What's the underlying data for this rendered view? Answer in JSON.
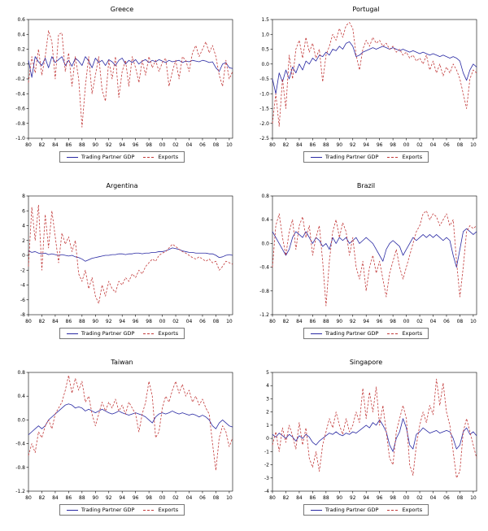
{
  "legend": {
    "gdp_label": "Trading Partner GDP",
    "exports_label": "Exports",
    "gdp_color": "#2929a3",
    "exports_color": "#c23a3a"
  },
  "x_axis": {
    "tick_labels": [
      "80",
      "82",
      "84",
      "86",
      "88",
      "90",
      "92",
      "94",
      "96",
      "98",
      "00",
      "02",
      "04",
      "06",
      "08",
      "10"
    ],
    "start": 1980,
    "end": 2010.5,
    "tick_step_years": 2
  },
  "chart_data": [
    {
      "type": "line",
      "title": "Greece",
      "ylim": [
        -1.0,
        0.6
      ],
      "yticks": [
        "0.6",
        "0.4",
        "0.2",
        "0.0",
        "-0.2",
        "-0.4",
        "-0.6",
        "-0.8",
        "-1.0"
      ],
      "series": [
        {
          "name": "Trading Partner GDP",
          "style": "solid",
          "color": "#2929a3",
          "values": [
            0.05,
            -0.18,
            0.1,
            0.03,
            -0.02,
            0.08,
            -0.05,
            0.1,
            0.02,
            0.06,
            0.1,
            -0.02,
            0.05,
            -0.03,
            0.08,
            0.04,
            -0.02,
            0.1,
            0.04,
            -0.05,
            0.08,
            0.02,
            0.05,
            -0.02,
            0.06,
            0.03,
            -0.02,
            0.05,
            0.08,
            0.0,
            0.05,
            0.02,
            0.06,
            0.0,
            0.04,
            0.06,
            0.02,
            0.05,
            0.03,
            0.06,
            0.04,
            0.02,
            0.05,
            0.03,
            0.04,
            0.05,
            0.02,
            0.04,
            0.03,
            0.05,
            0.04,
            0.03,
            0.05,
            0.04,
            0.02,
            0.03,
            -0.05,
            -0.1,
            0.0,
            0.02,
            -0.05,
            -0.06
          ]
        },
        {
          "name": "Exports",
          "style": "dashed",
          "color": "#c23a3a",
          "values": [
            -0.25,
            0.1,
            -0.12,
            0.2,
            -0.15,
            0.1,
            0.45,
            0.3,
            -0.2,
            0.4,
            0.42,
            -0.1,
            0.15,
            -0.3,
            0.1,
            -0.2,
            -0.85,
            -0.3,
            0.1,
            -0.4,
            -0.15,
            0.1,
            -0.35,
            -0.5,
            0.05,
            -0.2,
            0.1,
            -0.45,
            -0.1,
            0.05,
            -0.3,
            0.1,
            -0.05,
            -0.25,
            0.05,
            -0.15,
            0.1,
            -0.05,
            0.05,
            -0.1,
            0.02,
            0.08,
            -0.3,
            -0.1,
            0.05,
            -0.2,
            0.1,
            0.05,
            -0.1,
            0.15,
            0.25,
            0.1,
            0.2,
            0.3,
            0.15,
            0.25,
            0.1,
            -0.15,
            -0.3,
            0.05,
            -0.2,
            -0.1
          ]
        }
      ]
    },
    {
      "type": "line",
      "title": "Portugal",
      "ylim": [
        -2.5,
        1.5
      ],
      "yticks": [
        "1.5",
        "1.0",
        "0.5",
        "0.0",
        "-0.5",
        "-1.0",
        "-1.5",
        "-2.0",
        "-2.5"
      ],
      "series": [
        {
          "name": "Trading Partner GDP",
          "style": "solid",
          "color": "#2929a3",
          "values": [
            -0.5,
            -1.0,
            -0.3,
            -0.6,
            -0.2,
            -0.5,
            -0.1,
            -0.3,
            0.0,
            -0.2,
            0.1,
            0.0,
            0.2,
            0.1,
            0.3,
            0.25,
            0.4,
            0.3,
            0.5,
            0.45,
            0.6,
            0.5,
            0.7,
            0.75,
            0.6,
            0.25,
            0.3,
            0.4,
            0.45,
            0.5,
            0.55,
            0.5,
            0.55,
            0.6,
            0.55,
            0.5,
            0.55,
            0.5,
            0.45,
            0.5,
            0.45,
            0.4,
            0.45,
            0.4,
            0.35,
            0.4,
            0.35,
            0.3,
            0.35,
            0.3,
            0.25,
            0.3,
            0.25,
            0.2,
            0.25,
            0.2,
            0.1,
            -0.3,
            -0.55,
            -0.2,
            0.0,
            -0.1
          ]
        },
        {
          "name": "Exports",
          "style": "dashed",
          "color": "#c23a3a",
          "values": [
            -2.0,
            -1.0,
            -2.1,
            -0.5,
            -1.5,
            0.3,
            -0.5,
            0.5,
            0.8,
            0.2,
            0.9,
            0.4,
            0.7,
            0.2,
            0.5,
            -0.6,
            0.3,
            0.6,
            1.0,
            0.8,
            1.2,
            0.9,
            1.3,
            1.4,
            1.2,
            0.3,
            -0.2,
            0.5,
            0.8,
            0.6,
            0.9,
            0.7,
            0.8,
            0.6,
            0.7,
            0.5,
            0.6,
            0.4,
            0.5,
            0.3,
            0.4,
            0.2,
            0.3,
            0.1,
            0.2,
            0.0,
            0.3,
            -0.2,
            0.1,
            -0.3,
            0.0,
            -0.4,
            -0.1,
            -0.3,
            0.0,
            -0.2,
            -0.5,
            -1.0,
            -1.5,
            -0.5,
            -0.2,
            -0.3
          ]
        }
      ]
    },
    {
      "type": "line",
      "title": "Argentina",
      "ylim": [
        -8,
        8
      ],
      "yticks": [
        "8",
        "6",
        "4",
        "2",
        "0",
        "-2",
        "-4",
        "-6",
        "-8"
      ],
      "series": [
        {
          "name": "Trading Partner GDP",
          "style": "solid",
          "color": "#2929a3",
          "values": [
            0.6,
            0.4,
            0.5,
            0.3,
            0.2,
            0.3,
            0.1,
            0.2,
            0.1,
            0.0,
            0.1,
            0.0,
            -0.1,
            0.0,
            -0.2,
            -0.3,
            -0.5,
            -0.8,
            -0.6,
            -0.4,
            -0.3,
            -0.2,
            -0.1,
            0.0,
            0.0,
            0.1,
            0.1,
            0.2,
            0.2,
            0.1,
            0.2,
            0.2,
            0.3,
            0.3,
            0.2,
            0.3,
            0.3,
            0.4,
            0.4,
            0.5,
            0.5,
            0.6,
            0.8,
            1.0,
            0.9,
            0.8,
            0.6,
            0.5,
            0.4,
            0.4,
            0.3,
            0.3,
            0.3,
            0.3,
            0.2,
            0.2,
            0.0,
            -0.3,
            -0.2,
            0.0,
            0.1,
            0.0
          ]
        },
        {
          "name": "Exports",
          "style": "dashed",
          "color": "#c23a3a",
          "values": [
            -1.5,
            6.5,
            2.0,
            6.8,
            -2.0,
            5.5,
            1.0,
            6.0,
            2.5,
            -1.0,
            3.0,
            1.5,
            2.5,
            0.5,
            2.0,
            -2.5,
            -3.5,
            -2.0,
            -4.5,
            -3.0,
            -5.5,
            -6.5,
            -4.0,
            -5.5,
            -3.5,
            -4.5,
            -5.0,
            -3.5,
            -4.0,
            -3.0,
            -3.5,
            -2.5,
            -3.0,
            -2.0,
            -2.5,
            -1.5,
            -1.0,
            -0.5,
            -0.8,
            0.0,
            0.3,
            0.5,
            1.0,
            1.5,
            1.2,
            0.8,
            0.5,
            0.3,
            0.0,
            -0.3,
            -0.5,
            -0.2,
            -0.5,
            -0.8,
            -0.5,
            -1.0,
            -0.8,
            -2.0,
            -1.5,
            -0.8,
            -1.0,
            -1.2
          ]
        }
      ]
    },
    {
      "type": "line",
      "title": "Brazil",
      "ylim": [
        -1.2,
        0.8
      ],
      "yticks": [
        "0.8",
        "0.4",
        "0.0",
        "-0.4",
        "-0.8",
        "-1.2"
      ],
      "series": [
        {
          "name": "Trading Partner GDP",
          "style": "solid",
          "color": "#2929a3",
          "values": [
            0.2,
            0.1,
            0.0,
            -0.1,
            -0.2,
            -0.1,
            0.1,
            0.2,
            0.15,
            0.1,
            0.2,
            0.1,
            0.0,
            0.1,
            0.05,
            -0.05,
            0.0,
            -0.1,
            0.1,
            0.0,
            0.1,
            0.05,
            0.1,
            0.0,
            0.05,
            0.1,
            0.0,
            0.05,
            0.1,
            0.05,
            0.0,
            -0.1,
            -0.2,
            -0.3,
            -0.1,
            0.0,
            0.05,
            0.0,
            -0.05,
            -0.2,
            -0.1,
            0.0,
            0.1,
            0.05,
            0.1,
            0.15,
            0.1,
            0.15,
            0.1,
            0.15,
            0.1,
            0.05,
            0.1,
            0.05,
            -0.2,
            -0.4,
            -0.1,
            0.2,
            0.25,
            0.2,
            0.15,
            0.2
          ]
        },
        {
          "name": "Exports",
          "style": "dashed",
          "color": "#c23a3a",
          "values": [
            -0.4,
            0.3,
            0.5,
            0.1,
            -0.2,
            0.2,
            0.4,
            -0.1,
            0.3,
            0.45,
            0.1,
            0.3,
            -0.2,
            0.1,
            0.3,
            -0.3,
            -1.05,
            -0.3,
            0.2,
            0.4,
            0.1,
            0.35,
            0.2,
            -0.2,
            0.1,
            -0.4,
            -0.6,
            -0.3,
            -0.8,
            -0.4,
            -0.2,
            -0.5,
            -0.3,
            -0.6,
            -0.9,
            -0.5,
            -0.3,
            -0.1,
            -0.4,
            -0.6,
            -0.4,
            -0.2,
            0.0,
            0.2,
            0.3,
            0.5,
            0.55,
            0.4,
            0.5,
            0.45,
            0.3,
            0.4,
            0.5,
            0.3,
            0.4,
            -0.3,
            -0.9,
            -0.4,
            0.2,
            0.3,
            0.25,
            0.3
          ]
        }
      ]
    },
    {
      "type": "line",
      "title": "Taiwan",
      "ylim": [
        -1.2,
        0.8
      ],
      "yticks": [
        "0.8",
        "0.4",
        "0.0",
        "-0.4",
        "-0.8",
        "-1.2"
      ],
      "series": [
        {
          "name": "Trading Partner GDP",
          "style": "solid",
          "color": "#2929a3",
          "values": [
            -0.25,
            -0.2,
            -0.15,
            -0.1,
            -0.15,
            -0.1,
            0.0,
            0.05,
            0.1,
            0.15,
            0.2,
            0.25,
            0.27,
            0.25,
            0.2,
            0.22,
            0.2,
            0.15,
            0.18,
            0.15,
            0.12,
            0.15,
            0.18,
            0.15,
            0.12,
            0.1,
            0.12,
            0.15,
            0.12,
            0.1,
            0.08,
            0.1,
            0.12,
            0.1,
            0.08,
            0.05,
            0.0,
            -0.05,
            0.05,
            0.1,
            0.12,
            0.1,
            0.12,
            0.15,
            0.12,
            0.1,
            0.12,
            0.1,
            0.08,
            0.1,
            0.08,
            0.05,
            0.08,
            0.05,
            0.0,
            -0.1,
            -0.15,
            -0.05,
            0.0,
            -0.05,
            -0.1,
            -0.12
          ]
        },
        {
          "name": "Exports",
          "style": "dashed",
          "color": "#c23a3a",
          "values": [
            -0.6,
            -0.4,
            -0.55,
            -0.2,
            -0.3,
            -0.1,
            0.0,
            -0.15,
            0.1,
            0.2,
            0.3,
            0.5,
            0.75,
            0.45,
            0.7,
            0.5,
            0.65,
            0.3,
            0.4,
            0.1,
            -0.1,
            0.1,
            0.3,
            0.15,
            0.3,
            0.2,
            0.35,
            0.15,
            0.25,
            0.1,
            0.3,
            0.2,
            0.1,
            -0.2,
            0.1,
            0.3,
            0.65,
            0.4,
            -0.3,
            -0.2,
            0.2,
            0.4,
            0.3,
            0.5,
            0.65,
            0.45,
            0.6,
            0.4,
            0.5,
            0.3,
            0.4,
            0.25,
            0.35,
            0.2,
            0.1,
            -0.4,
            -0.85,
            -0.3,
            -0.1,
            -0.2,
            -0.45,
            -0.3
          ]
        }
      ]
    },
    {
      "type": "line",
      "title": "Singapore",
      "ylim": [
        -4,
        5
      ],
      "yticks": [
        "5",
        "4",
        "3",
        "2",
        "1",
        "0",
        "-1",
        "-2",
        "-3",
        "-4"
      ],
      "series": [
        {
          "name": "Trading Partner GDP",
          "style": "solid",
          "color": "#2929a3",
          "values": [
            0.3,
            0.1,
            0.4,
            0.2,
            0.0,
            0.3,
            0.1,
            -0.2,
            0.2,
            0.0,
            0.3,
            0.1,
            -0.3,
            -0.5,
            -0.2,
            0.0,
            0.2,
            0.4,
            0.3,
            0.5,
            0.3,
            0.2,
            0.4,
            0.3,
            0.5,
            0.4,
            0.6,
            0.8,
            1.0,
            0.8,
            1.2,
            1.0,
            1.4,
            1.0,
            0.5,
            -0.5,
            -1.0,
            0.0,
            0.5,
            1.5,
            0.8,
            -0.5,
            -0.8,
            0.3,
            0.5,
            0.8,
            0.6,
            0.4,
            0.5,
            0.6,
            0.4,
            0.5,
            0.6,
            0.5,
            0.0,
            -0.8,
            -0.5,
            0.5,
            0.8,
            0.3,
            0.5,
            0.2
          ]
        },
        {
          "name": "Exports",
          "style": "dashed",
          "color": "#c23a3a",
          "values": [
            -0.5,
            0.5,
            -1.0,
            0.8,
            -0.3,
            1.0,
            0.2,
            -0.8,
            1.2,
            -0.5,
            0.8,
            -1.5,
            -2.2,
            -1.0,
            -2.5,
            -0.5,
            0.5,
            1.5,
            0.8,
            2.0,
            1.0,
            0.3,
            1.5,
            0.5,
            1.0,
            2.0,
            1.2,
            3.8,
            1.5,
            3.5,
            2.0,
            3.9,
            1.0,
            2.5,
            0.5,
            -1.5,
            -2.0,
            0.5,
            1.5,
            2.5,
            1.5,
            -2.0,
            -2.8,
            -0.5,
            1.0,
            2.0,
            1.2,
            2.5,
            1.8,
            4.5,
            2.5,
            4.2,
            2.0,
            1.0,
            -1.0,
            -3.0,
            -2.5,
            0.5,
            1.5,
            0.5,
            -0.5,
            -1.5
          ]
        }
      ]
    }
  ]
}
